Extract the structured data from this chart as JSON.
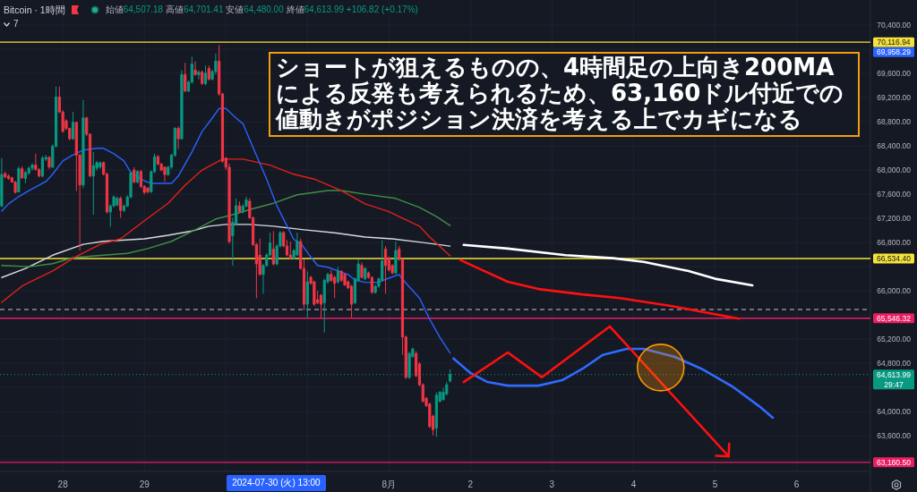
{
  "chart_data": {
    "type": "candlestick",
    "title": "Bitcoin · 1時間",
    "subtitle": "始値64,507.18 高値64,701.41 安値64,480.00 終値64,613.99 +106.82 (+0.17%)",
    "annotations": [
      "ショートが狙えるものの、4時間足の上向き200MAによる反発も考えられるため、63,160ドル付近での値動きがポジション決済を考える上でカギになる",
      "7",
      "69,958.29",
      "29:47",
      "2024-07-30 (火) 13:00"
    ],
    "xlim": [
      "2024-07-27T05:30",
      "2024-08-06T21:45"
    ],
    "ylim": [
      63010,
      70815
    ],
    "xticks": [
      {
        "value": "2024-07-28",
        "label": "28"
      },
      {
        "value": "2024-07-29",
        "label": "29"
      },
      {
        "value": "2024-07-30",
        "label": null
      },
      {
        "value": "2024-07-31",
        "label": null
      },
      {
        "value": "2024-08-01",
        "label": "8月"
      },
      {
        "value": "2024-08-02",
        "label": "2"
      },
      {
        "value": "2024-08-03",
        "label": "3"
      },
      {
        "value": "2024-08-04",
        "label": "4"
      },
      {
        "value": "2024-08-05",
        "label": "5"
      },
      {
        "value": "2024-08-06",
        "label": "6"
      }
    ],
    "yticks": [
      {
        "value": 63200,
        "label": null
      },
      {
        "value": 63600,
        "label": "63,600.00"
      },
      {
        "value": 64000,
        "label": "64,000.00"
      },
      {
        "value": 64400,
        "label": null
      },
      {
        "value": 64800,
        "label": "64,800.00"
      },
      {
        "value": 65200,
        "label": "65,200.00"
      },
      {
        "value": 65600,
        "label": null
      },
      {
        "value": 66000,
        "label": "66,000.00"
      },
      {
        "value": 66400,
        "label": null
      },
      {
        "value": 66800,
        "label": "66,800.00"
      },
      {
        "value": 67200,
        "label": "67,200.00"
      },
      {
        "value": 67600,
        "label": "67,600.00"
      },
      {
        "value": 68000,
        "label": "68,000.00"
      },
      {
        "value": 68400,
        "label": "68,400.00"
      },
      {
        "value": 68800,
        "label": "68,800.00"
      },
      {
        "value": 69200,
        "label": "69,200.00"
      },
      {
        "value": 69600,
        "label": "69,600.00"
      },
      {
        "value": 70000,
        "label": null
      },
      {
        "value": 70400,
        "label": "70,400.00"
      }
    ],
    "grid": true,
    "ref_lines": [
      {
        "axis": "y",
        "value": 70116.94,
        "label": "70,116.94",
        "color": "#f5e23b"
      },
      {
        "axis": "y",
        "value": 66534.4,
        "label": "66,534.40",
        "color": "#f5e23b"
      },
      {
        "axis": "y",
        "value": 65546.32,
        "label": "65,546.32",
        "color": "#e91e63"
      },
      {
        "axis": "y",
        "value": 63160.5,
        "label": "63,160.50",
        "color": "#e91e63"
      },
      {
        "axis": "y",
        "value": 64613.99,
        "label": "64,613.99",
        "color": "#089981",
        "line_style": "dotted"
      },
      {
        "axis": "y",
        "value": 65690,
        "color": "#8a8f9c",
        "line_style": "dashed"
      }
    ],
    "x": [
      "2024-07-27T06:00",
      "2024-07-27T07:00",
      "2024-07-27T08:00",
      "2024-07-27T09:00",
      "2024-07-27T10:00",
      "2024-07-27T11:00",
      "2024-07-27T12:00",
      "2024-07-27T13:00",
      "2024-07-27T14:00",
      "2024-07-27T15:00",
      "2024-07-27T16:00",
      "2024-07-27T17:00",
      "2024-07-27T18:00",
      "2024-07-27T19:00",
      "2024-07-27T20:00",
      "2024-07-27T21:00",
      "2024-07-27T22:00",
      "2024-07-27T23:00",
      "2024-07-28T00:00",
      "2024-07-28T01:00",
      "2024-07-28T02:00",
      "2024-07-28T03:00",
      "2024-07-28T04:00",
      "2024-07-28T05:00",
      "2024-07-28T06:00",
      "2024-07-28T07:00",
      "2024-07-28T08:00",
      "2024-07-28T09:00",
      "2024-07-28T10:00",
      "2024-07-28T11:00",
      "2024-07-28T12:00",
      "2024-07-28T13:00",
      "2024-07-28T14:00",
      "2024-07-28T15:00",
      "2024-07-28T16:00",
      "2024-07-28T17:00",
      "2024-07-28T18:00",
      "2024-07-28T19:00",
      "2024-07-28T20:00",
      "2024-07-28T21:00",
      "2024-07-28T22:00",
      "2024-07-28T23:00",
      "2024-07-29T00:00",
      "2024-07-29T01:00",
      "2024-07-29T02:00",
      "2024-07-29T03:00",
      "2024-07-29T04:00",
      "2024-07-29T05:00",
      "2024-07-29T06:00",
      "2024-07-29T07:00",
      "2024-07-29T08:00",
      "2024-07-29T09:00",
      "2024-07-29T10:00",
      "2024-07-29T11:00",
      "2024-07-29T12:00",
      "2024-07-29T13:00",
      "2024-07-29T14:00",
      "2024-07-29T15:00",
      "2024-07-29T16:00",
      "2024-07-29T17:00",
      "2024-07-29T18:00",
      "2024-07-29T19:00",
      "2024-07-29T20:00",
      "2024-07-29T21:00",
      "2024-07-29T22:00",
      "2024-07-29T23:00",
      "2024-07-30T00:00",
      "2024-07-30T01:00",
      "2024-07-30T02:00",
      "2024-07-30T03:00",
      "2024-07-30T04:00",
      "2024-07-30T05:00",
      "2024-07-30T06:00",
      "2024-07-30T07:00",
      "2024-07-30T08:00",
      "2024-07-30T09:00",
      "2024-07-30T10:00",
      "2024-07-30T11:00",
      "2024-07-30T12:00",
      "2024-07-30T13:00",
      "2024-07-30T14:00",
      "2024-07-30T15:00",
      "2024-07-30T16:00",
      "2024-07-30T17:00",
      "2024-07-30T18:00",
      "2024-07-30T19:00",
      "2024-07-30T20:00",
      "2024-07-30T21:00",
      "2024-07-30T22:00",
      "2024-07-30T23:00",
      "2024-07-31T00:00",
      "2024-07-31T01:00",
      "2024-07-31T02:00",
      "2024-07-31T03:00",
      "2024-07-31T04:00",
      "2024-07-31T05:00",
      "2024-07-31T06:00",
      "2024-07-31T07:00",
      "2024-07-31T08:00",
      "2024-07-31T09:00",
      "2024-07-31T10:00",
      "2024-07-31T11:00",
      "2024-07-31T12:00",
      "2024-07-31T13:00",
      "2024-07-31T14:00",
      "2024-07-31T15:00",
      "2024-07-31T16:00",
      "2024-07-31T17:00",
      "2024-07-31T18:00",
      "2024-07-31T19:00",
      "2024-07-31T20:00",
      "2024-07-31T21:00",
      "2024-07-31T22:00",
      "2024-07-31T23:00",
      "2024-08-01T00:00",
      "2024-08-01T01:00",
      "2024-08-01T02:00",
      "2024-08-01T03:00",
      "2024-08-01T04:00",
      "2024-08-01T05:00",
      "2024-08-01T06:00",
      "2024-08-01T07:00",
      "2024-08-01T08:00",
      "2024-08-01T09:00",
      "2024-08-01T10:00",
      "2024-08-01T11:00",
      "2024-08-01T12:00",
      "2024-08-01T13:00",
      "2024-08-01T14:00",
      "2024-08-01T15:00",
      "2024-08-01T16:00",
      "2024-08-01T17:00",
      "2024-08-01T18:00"
    ],
    "ohlc": [
      [
        67406,
        68197,
        67382,
        67925
      ],
      [
        67940,
        67974,
        67861,
        67890
      ],
      [
        67900,
        67930,
        67840,
        67861
      ],
      [
        67870,
        67890,
        67790,
        67802
      ],
      [
        67800,
        67820,
        67614,
        67629
      ],
      [
        67640,
        68058,
        67629,
        68024
      ],
      [
        68020,
        68060,
        67860,
        67870
      ],
      [
        67860,
        67980,
        67780,
        67960
      ],
      [
        67950,
        68060,
        67920,
        68030
      ],
      [
        68030,
        68110,
        67990,
        68083
      ],
      [
        68083,
        68271,
        67990,
        68009
      ],
      [
        68009,
        68030,
        67880,
        67900
      ],
      [
        67900,
        68230,
        67880,
        68197
      ],
      [
        68180,
        68250,
        68150,
        68210
      ],
      [
        68210,
        68230,
        68020,
        68048
      ],
      [
        68048,
        68420,
        68030,
        68394
      ],
      [
        68394,
        69382,
        68370,
        69209
      ],
      [
        69209,
        69382,
        68940,
        68962
      ],
      [
        68962,
        68990,
        68620,
        68641
      ],
      [
        68814,
        68840,
        68660,
        68690
      ],
      [
        68690,
        68700,
        68490,
        68518
      ],
      [
        68518,
        68962,
        68500,
        68789
      ],
      [
        68789,
        68800,
        67653,
        68246
      ],
      [
        68246,
        68270,
        66665,
        67752
      ],
      [
        67752,
        69160,
        67700,
        68864
      ],
      [
        68864,
        68880,
        68560,
        68592
      ],
      [
        68592,
        68610,
        67880,
        67900
      ],
      [
        67900,
        68296,
        67258,
        68073
      ],
      [
        68030,
        68150,
        67990,
        68123
      ],
      [
        68050,
        68140,
        68020,
        68120
      ],
      [
        68123,
        68140,
        67910,
        67930
      ],
      [
        67930,
        67960,
        67280,
        67307
      ],
      [
        67307,
        67430,
        67060,
        67406
      ],
      [
        67406,
        67580,
        67380,
        67554
      ],
      [
        67420,
        67560,
        67400,
        67530
      ],
      [
        67530,
        67560,
        67209,
        67332
      ],
      [
        67332,
        67430,
        67300,
        67406
      ],
      [
        67406,
        67580,
        67390,
        67554
      ],
      [
        67554,
        67980,
        67530,
        67950
      ],
      [
        67999,
        68048,
        67780,
        67801
      ],
      [
        67801,
        68000,
        67780,
        67974
      ],
      [
        67974,
        68000,
        67700,
        67727
      ],
      [
        67727,
        67750,
        67600,
        67629
      ],
      [
        67700,
        67720,
        67610,
        67640
      ],
      [
        67640,
        67990,
        67620,
        67974
      ],
      [
        67974,
        68271,
        67950,
        68221
      ],
      [
        68221,
        68250,
        68080,
        68098
      ],
      [
        68098,
        68120,
        67980,
        67999
      ],
      [
        68048,
        68060,
        67801,
        67925
      ],
      [
        67925,
        68070,
        67900,
        68048
      ],
      [
        68048,
        68270,
        68020,
        68246
      ],
      [
        68246,
        68710,
        68220,
        68691
      ],
      [
        68691,
        68720,
        68345,
        68518
      ],
      [
        68518,
        69654,
        68500,
        69580
      ],
      [
        69580,
        69777,
        69290,
        69308
      ],
      [
        69308,
        69480,
        69290,
        69456
      ],
      [
        69456,
        69876,
        69430,
        69753
      ],
      [
        69654,
        69802,
        69560,
        69580
      ],
      [
        69580,
        69650,
        69500,
        69620
      ],
      [
        69620,
        69650,
        69410,
        69432
      ],
      [
        69432,
        69728,
        69400,
        69605
      ],
      [
        69679,
        69728,
        69480,
        69506
      ],
      [
        69506,
        69660,
        69480,
        69630
      ],
      [
        69630,
        69926,
        69580,
        69802
      ],
      [
        69802,
        70070,
        69230,
        69259
      ],
      [
        69259,
        69280,
        68120,
        68147
      ],
      [
        68197,
        68210,
        68000,
        68048
      ],
      [
        68048,
        68110,
        66780,
        66816
      ],
      [
        66914,
        67211,
        66420,
        67137
      ],
      [
        67112,
        67532,
        67090,
        67408
      ],
      [
        67408,
        67480,
        67290,
        67310
      ],
      [
        67310,
        67440,
        67280,
        67400
      ],
      [
        67400,
        67557,
        67380,
        67507
      ],
      [
        67483,
        67532,
        67190,
        67211
      ],
      [
        67211,
        67230,
        66740,
        66766
      ],
      [
        66766,
        66790,
        65877,
        66445
      ],
      [
        66593,
        66865,
        66250,
        66272
      ],
      [
        66272,
        66440,
        65951,
        66420
      ],
      [
        66420,
        66620,
        66400,
        66593
      ],
      [
        66593,
        66964,
        66570,
        66791
      ],
      [
        66692,
        66989,
        66420,
        66445
      ],
      [
        66445,
        66770,
        66420,
        66742
      ],
      [
        66742,
        66990,
        66720,
        66964
      ],
      [
        66964,
        66990,
        66720,
        66742
      ],
      [
        66742,
        66840,
        66570,
        66593
      ],
      [
        66593,
        66816,
        66520,
        66544
      ],
      [
        66544,
        66690,
        66520,
        66667
      ],
      [
        66593,
        66964,
        66570,
        66816
      ],
      [
        66816,
        66865,
        66350,
        66371
      ],
      [
        66371,
        66519,
        65680,
        65778
      ],
      [
        65778,
        66322,
        65556,
        66149
      ],
      [
        66223,
        66250,
        66100,
        66124
      ],
      [
        66149,
        66170,
        65750,
        65778
      ],
      [
        65852,
        66001,
        65780,
        65803
      ],
      [
        65927,
        65950,
        65556,
        65778
      ],
      [
        65803,
        66200,
        65309,
        66174
      ],
      [
        66149,
        66300,
        66120,
        66272
      ],
      [
        66272,
        66346,
        66150,
        66174
      ],
      [
        66223,
        66250,
        65880,
        66124
      ],
      [
        66149,
        66396,
        66120,
        66322
      ],
      [
        66322,
        66340,
        66150,
        66174
      ],
      [
        66272,
        66290,
        66080,
        66099
      ],
      [
        66149,
        66170,
        66030,
        66050
      ],
      [
        66075,
        66100,
        65556,
        65778
      ],
      [
        65803,
        66220,
        65780,
        66198
      ],
      [
        66174,
        66519,
        66150,
        66445
      ],
      [
        66420,
        66470,
        66200,
        66223
      ],
      [
        66198,
        66390,
        66180,
        66371
      ],
      [
        66297,
        66320,
        66200,
        66223
      ],
      [
        66223,
        66240,
        65950,
        65976
      ],
      [
        65976,
        66100,
        65950,
        66075
      ],
      [
        66075,
        66220,
        66050,
        66198
      ],
      [
        66174,
        66840,
        66150,
        66495
      ],
      [
        66692,
        66742,
        65951,
        66420
      ],
      [
        66544,
        66570,
        66320,
        66346
      ],
      [
        66420,
        66440,
        66270,
        66297
      ],
      [
        66297,
        66816,
        66270,
        66667
      ],
      [
        66692,
        66742,
        66500,
        66519
      ],
      [
        66519,
        66540,
        64940,
        65235
      ],
      [
        65235,
        65260,
        64540,
        64568
      ],
      [
        64568,
        64990,
        64540,
        64963
      ],
      [
        64914,
        65060,
        64890,
        65037
      ],
      [
        64963,
        65000,
        64570,
        64593
      ],
      [
        64790,
        64820,
        64420,
        64444
      ],
      [
        64444,
        64470,
        64150,
        64173
      ],
      [
        64222,
        64240,
        64080,
        64099
      ],
      [
        64124,
        64150,
        63730,
        63753
      ],
      [
        63926,
        63950,
        63605,
        63703
      ],
      [
        63728,
        64321,
        63580,
        64272
      ],
      [
        64173,
        64340,
        64150,
        64321
      ],
      [
        64198,
        64395,
        64180,
        64321
      ],
      [
        64296,
        64494,
        64270,
        64444
      ],
      [
        64507.18,
        64701.41,
        64480.0,
        64613.99
      ]
    ],
    "colors": [
      "#089981",
      "#f23645",
      "#f23645",
      "#f23645",
      "#f23645",
      "#089981",
      "#f23645",
      "#089981",
      "#089981",
      "#089981",
      "#f23645",
      "#f23645",
      "#089981",
      "#089981",
      "#f23645",
      "#089981",
      "#089981",
      "#f23645",
      "#f23645",
      "#f23645",
      "#f23645",
      "#089981",
      "#f23645",
      "#f23645",
      "#089981",
      "#f23645",
      "#f23645",
      "#089981",
      "#089981",
      "#089981",
      "#f23645",
      "#f23645",
      "#089981",
      "#089981",
      "#089981",
      "#f23645",
      "#089981",
      "#089981",
      "#089981",
      "#f23645",
      "#089981",
      "#f23645",
      "#f23645",
      "#f23645",
      "#089981",
      "#089981",
      "#f23645",
      "#f23645",
      "#f23645",
      "#089981",
      "#089981",
      "#089981",
      "#f23645",
      "#089981",
      "#f23645",
      "#089981",
      "#089981",
      "#f23645",
      "#089981",
      "#f23645",
      "#089981",
      "#f23645",
      "#089981",
      "#089981",
      "#f23645",
      "#f23645",
      "#f23645",
      "#f23645",
      "#089981",
      "#089981",
      "#f23645",
      "#089981",
      "#089981",
      "#f23645",
      "#f23645",
      "#f23645",
      "#f23645",
      "#089981",
      "#089981",
      "#089981",
      "#f23645",
      "#089981",
      "#089981",
      "#f23645",
      "#f23645",
      "#f23645",
      "#089981",
      "#089981",
      "#f23645",
      "#f23645",
      "#089981",
      "#f23645",
      "#f23645",
      "#f23645",
      "#f23645",
      "#089981",
      "#089981",
      "#f23645",
      "#f23645",
      "#089981",
      "#f23645",
      "#f23645",
      "#f23645",
      "#f23645",
      "#089981",
      "#089981",
      "#f23645",
      "#089981",
      "#f23645",
      "#f23645",
      "#089981",
      "#089981",
      "#089981",
      "#f23645",
      "#f23645",
      "#f23645",
      "#089981",
      "#f23645",
      "#f23645",
      "#f23645",
      "#089981",
      "#089981",
      "#f23645",
      "#f23645",
      "#f23645",
      "#f23645",
      "#f23645",
      "#f23645",
      "#089981",
      "#089981",
      "#089981",
      "#089981",
      "#089981"
    ],
    "series": [
      {
        "type": "line",
        "color": "#d9d9de",
        "x": [
          "2024-07-27T06:00",
          "2024-07-27T13:00",
          "2024-07-27T21:00",
          "2024-07-28T06:00",
          "2024-07-28T12:00",
          "2024-07-29T00:00",
          "2024-07-29T07:00",
          "2024-07-29T14:00",
          "2024-07-29T19:00",
          "2024-07-30T00:00",
          "2024-07-30T07:00",
          "2024-07-30T14:00",
          "2024-07-30T23:00",
          "2024-07-31T08:00",
          "2024-07-31T17:00",
          "2024-08-01T01:00",
          "2024-08-01T10:00",
          "2024-08-01T18:00"
        ],
        "values": [
          66220,
          66370,
          66590,
          66770,
          66820,
          66860,
          66920,
          66990,
          67070,
          67100,
          67100,
          67070,
          67010,
          66960,
          66890,
          66860,
          66800,
          66740
        ]
      },
      {
        "type": "line",
        "color": "#3f8f45",
        "x": [
          "2024-07-27T06:00",
          "2024-07-27T14:00",
          "2024-07-27T21:00",
          "2024-07-28T03:00",
          "2024-07-28T12:00",
          "2024-07-28T19:00",
          "2024-07-29T01:00",
          "2024-07-29T08:00",
          "2024-07-29T15:00",
          "2024-07-29T21:00",
          "2024-07-30T02:00",
          "2024-07-30T08:00",
          "2024-07-30T14:00",
          "2024-07-30T21:00",
          "2024-07-31T06:00",
          "2024-07-31T10:00",
          "2024-07-31T17:00",
          "2024-08-01T02:00",
          "2024-08-01T09:00",
          "2024-08-01T14:00",
          "2024-08-01T18:00"
        ],
        "values": [
          66420,
          66400,
          66450,
          66550,
          66590,
          66620,
          66700,
          66820,
          67010,
          67190,
          67260,
          67360,
          67450,
          67590,
          67660,
          67660,
          67600,
          67530,
          67380,
          67230,
          67080
        ]
      },
      {
        "type": "line",
        "color": "#e3201b",
        "x": [
          "2024-07-27T06:00",
          "2024-07-27T12:00",
          "2024-07-27T21:00",
          "2024-07-28T04:00",
          "2024-07-28T11:00",
          "2024-07-28T17:00",
          "2024-07-29T00:00",
          "2024-07-29T07:00",
          "2024-07-29T12:00",
          "2024-07-29T17:00",
          "2024-07-29T23:00",
          "2024-07-30T05:00",
          "2024-07-30T13:00",
          "2024-07-30T20:00",
          "2024-07-31T02:00",
          "2024-07-31T10:00",
          "2024-07-31T17:00",
          "2024-08-01T00:00",
          "2024-08-01T03:00",
          "2024-08-01T09:00",
          "2024-08-01T12:00",
          "2024-08-01T18:00"
        ],
        "values": [
          65810,
          66080,
          66330,
          66570,
          66770,
          66860,
          67160,
          67450,
          67750,
          68000,
          68180,
          68180,
          68080,
          67930,
          67850,
          67660,
          67440,
          67310,
          67230,
          67070,
          66890,
          66580
        ]
      },
      {
        "type": "line",
        "color": "#2962ff",
        "x": [
          "2024-07-27T06:00",
          "2024-07-27T08:00",
          "2024-07-27T11:00",
          "2024-07-27T14:00",
          "2024-07-27T19:00",
          "2024-07-27T21:00",
          "2024-07-28T00:00",
          "2024-07-28T03:00",
          "2024-07-28T06:00",
          "2024-07-28T10:00",
          "2024-07-28T12:00",
          "2024-07-28T15:00",
          "2024-07-28T18:00",
          "2024-07-28T20:00",
          "2024-07-29T00:00",
          "2024-07-29T02:00",
          "2024-07-29T08:00",
          "2024-07-29T10:00",
          "2024-07-29T14:00",
          "2024-07-29T17:00",
          "2024-07-29T20:00",
          "2024-07-29T22:00",
          "2024-07-30T00:00",
          "2024-07-30T03:00",
          "2024-07-30T05:00",
          "2024-07-30T08:00",
          "2024-07-30T12:00",
          "2024-07-30T15:00",
          "2024-07-30T20:00",
          "2024-07-30T22:00",
          "2024-07-31T01:00",
          "2024-07-31T03:00",
          "2024-07-31T06:00",
          "2024-07-31T12:00",
          "2024-07-31T14:00",
          "2024-07-31T17:00",
          "2024-07-31T21:00",
          "2024-07-31T23:00",
          "2024-08-01T03:00",
          "2024-08-01T04:00",
          "2024-08-01T09:00",
          "2024-08-01T12:00",
          "2024-08-01T15:00",
          "2024-08-01T18:00"
        ],
        "values": [
          67320,
          67440,
          67560,
          67660,
          67810,
          67930,
          68150,
          68250,
          68330,
          68360,
          68360,
          68270,
          68150,
          67960,
          67820,
          67780,
          67780,
          67900,
          68300,
          68640,
          68860,
          69020,
          69020,
          68860,
          68770,
          68370,
          67850,
          67410,
          66850,
          66790,
          66560,
          66420,
          66390,
          66270,
          66180,
          66140,
          66140,
          66190,
          66270,
          66190,
          65880,
          65530,
          65230,
          64970
        ]
      },
      {
        "type": "line",
        "color": "#ffffff",
        "x": [
          "2024-08-01T22:00",
          "2024-08-02T11:00",
          "2024-08-03T04:00",
          "2024-08-03T18:00",
          "2024-08-04T03:00",
          "2024-08-04T16:00",
          "2024-08-05T00:00",
          "2024-08-05T11:00"
        ],
        "values": [
          66760,
          66700,
          66590,
          66540,
          66480,
          66330,
          66200,
          66090
        ]
      },
      {
        "type": "line",
        "color": "#ff1010",
        "x": [
          "2024-08-01T21:00",
          "2024-08-02T04:00",
          "2024-08-02T11:00",
          "2024-08-02T20:00",
          "2024-08-03T09:00",
          "2024-08-03T20:00",
          "2024-08-04T11:00",
          "2024-08-05T07:00"
        ],
        "values": [
          66510,
          66330,
          66150,
          66030,
          65940,
          65880,
          65750,
          65540
        ]
      },
      {
        "type": "line",
        "color": "#2f6bff",
        "x": [
          "2024-08-01T19:00",
          "2024-08-02T00:00",
          "2024-08-02T05:00",
          "2024-08-02T11:00",
          "2024-08-02T20:00",
          "2024-08-03T03:00",
          "2024-08-03T09:00",
          "2024-08-03T15:00",
          "2024-08-03T22:00",
          "2024-08-04T03:00",
          "2024-08-04T12:00",
          "2024-08-04T20:00",
          "2024-08-05T05:00",
          "2024-08-05T13:00",
          "2024-08-05T17:00"
        ],
        "values": [
          64880,
          64640,
          64490,
          64430,
          64430,
          64520,
          64710,
          64940,
          65040,
          65040,
          64910,
          64710,
          64420,
          64090,
          63900
        ]
      },
      {
        "type": "line",
        "color": "#ff1010",
        "x": [
          "2024-08-01T22:00",
          "2024-08-02T11:00",
          "2024-08-02T21:00",
          "2024-08-03T17:00",
          "2024-08-05T04:00"
        ],
        "values": [
          64490,
          64980,
          64570,
          65410,
          63260
        ]
      },
      {
        "type": "bubble",
        "color": "#ff9800",
        "x": [
          "2024-08-04T08:00"
        ],
        "values": [
          64730
        ],
        "sizes": [
          1
        ]
      }
    ]
  }
}
